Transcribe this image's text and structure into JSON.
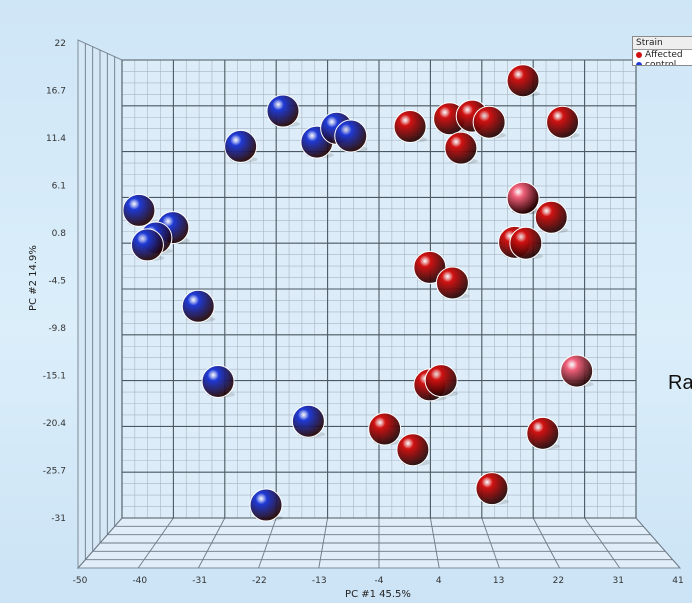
{
  "chart_data": {
    "type": "scatter",
    "title": "",
    "xlabel": "PC #1 45.5%",
    "ylabel": "PC #2 14.9%",
    "x_ticks": [
      "-50",
      "-40",
      "-31",
      "-22",
      "-13",
      "-4",
      "4",
      "13",
      "22",
      "31",
      "41"
    ],
    "y_ticks": [
      "22",
      "16.7",
      "11.4",
      "6.1",
      "0.8",
      "-4.5",
      "-9.8",
      "-15.1",
      "-20.4",
      "-25.7",
      "-31"
    ],
    "xlim": [
      -50,
      41
    ],
    "ylim": [
      -31,
      22
    ],
    "grid": true,
    "legend_position": "top-right",
    "legend": {
      "title": "Strain",
      "entries": [
        {
          "label": "Affected",
          "color": "#d11212"
        },
        {
          "label": "control",
          "color": "#1f3ad6"
        }
      ]
    },
    "series": [
      {
        "name": "Affected",
        "color": "#d11212",
        "points": [
          {
            "x": 1,
            "y": 14.3
          },
          {
            "x": 8,
            "y": 15.2
          },
          {
            "x": 12,
            "y": 15.5
          },
          {
            "x": 15,
            "y": 14.8
          },
          {
            "x": 10,
            "y": 11.8
          },
          {
            "x": 21,
            "y": 19.6
          },
          {
            "x": 28,
            "y": 14.8
          },
          {
            "x": 21,
            "y": 6.0
          },
          {
            "x": 26,
            "y": 3.8
          },
          {
            "x": 19.5,
            "y": 0.9
          },
          {
            "x": 21.5,
            "y": 0.8
          },
          {
            "x": 4.5,
            "y": -2.0
          },
          {
            "x": 8.5,
            "y": -3.8
          },
          {
            "x": 4.5,
            "y": -15.6
          },
          {
            "x": 6.5,
            "y": -15.1
          },
          {
            "x": -3.5,
            "y": -20.7
          },
          {
            "x": 1.5,
            "y": -23.1
          },
          {
            "x": 15.5,
            "y": -27.6
          },
          {
            "x": 24.5,
            "y": -21.2
          }
        ]
      },
      {
        "name": "control",
        "color": "#1f3ad6",
        "points": [
          {
            "x": -21.5,
            "y": 16.1
          },
          {
            "x": -29,
            "y": 12.0
          },
          {
            "x": -15.5,
            "y": 12.5
          },
          {
            "x": -12,
            "y": 14.1
          },
          {
            "x": -9.5,
            "y": 13.2
          },
          {
            "x": -47,
            "y": 4.6
          },
          {
            "x": -41,
            "y": 2.6
          },
          {
            "x": -44,
            "y": 1.4
          },
          {
            "x": -45.5,
            "y": 0.6
          },
          {
            "x": -36.5,
            "y": -6.5
          },
          {
            "x": -33,
            "y": -15.2
          },
          {
            "x": -17,
            "y": -19.8
          },
          {
            "x": -24.5,
            "y": -29.5
          }
        ]
      },
      {
        "name": "",
        "color": "#f0607a",
        "points": [
          {
            "x": 21,
            "y": 6.0
          },
          {
            "x": 30.5,
            "y": -14.0
          }
        ]
      }
    ]
  },
  "side_text": "Ra"
}
